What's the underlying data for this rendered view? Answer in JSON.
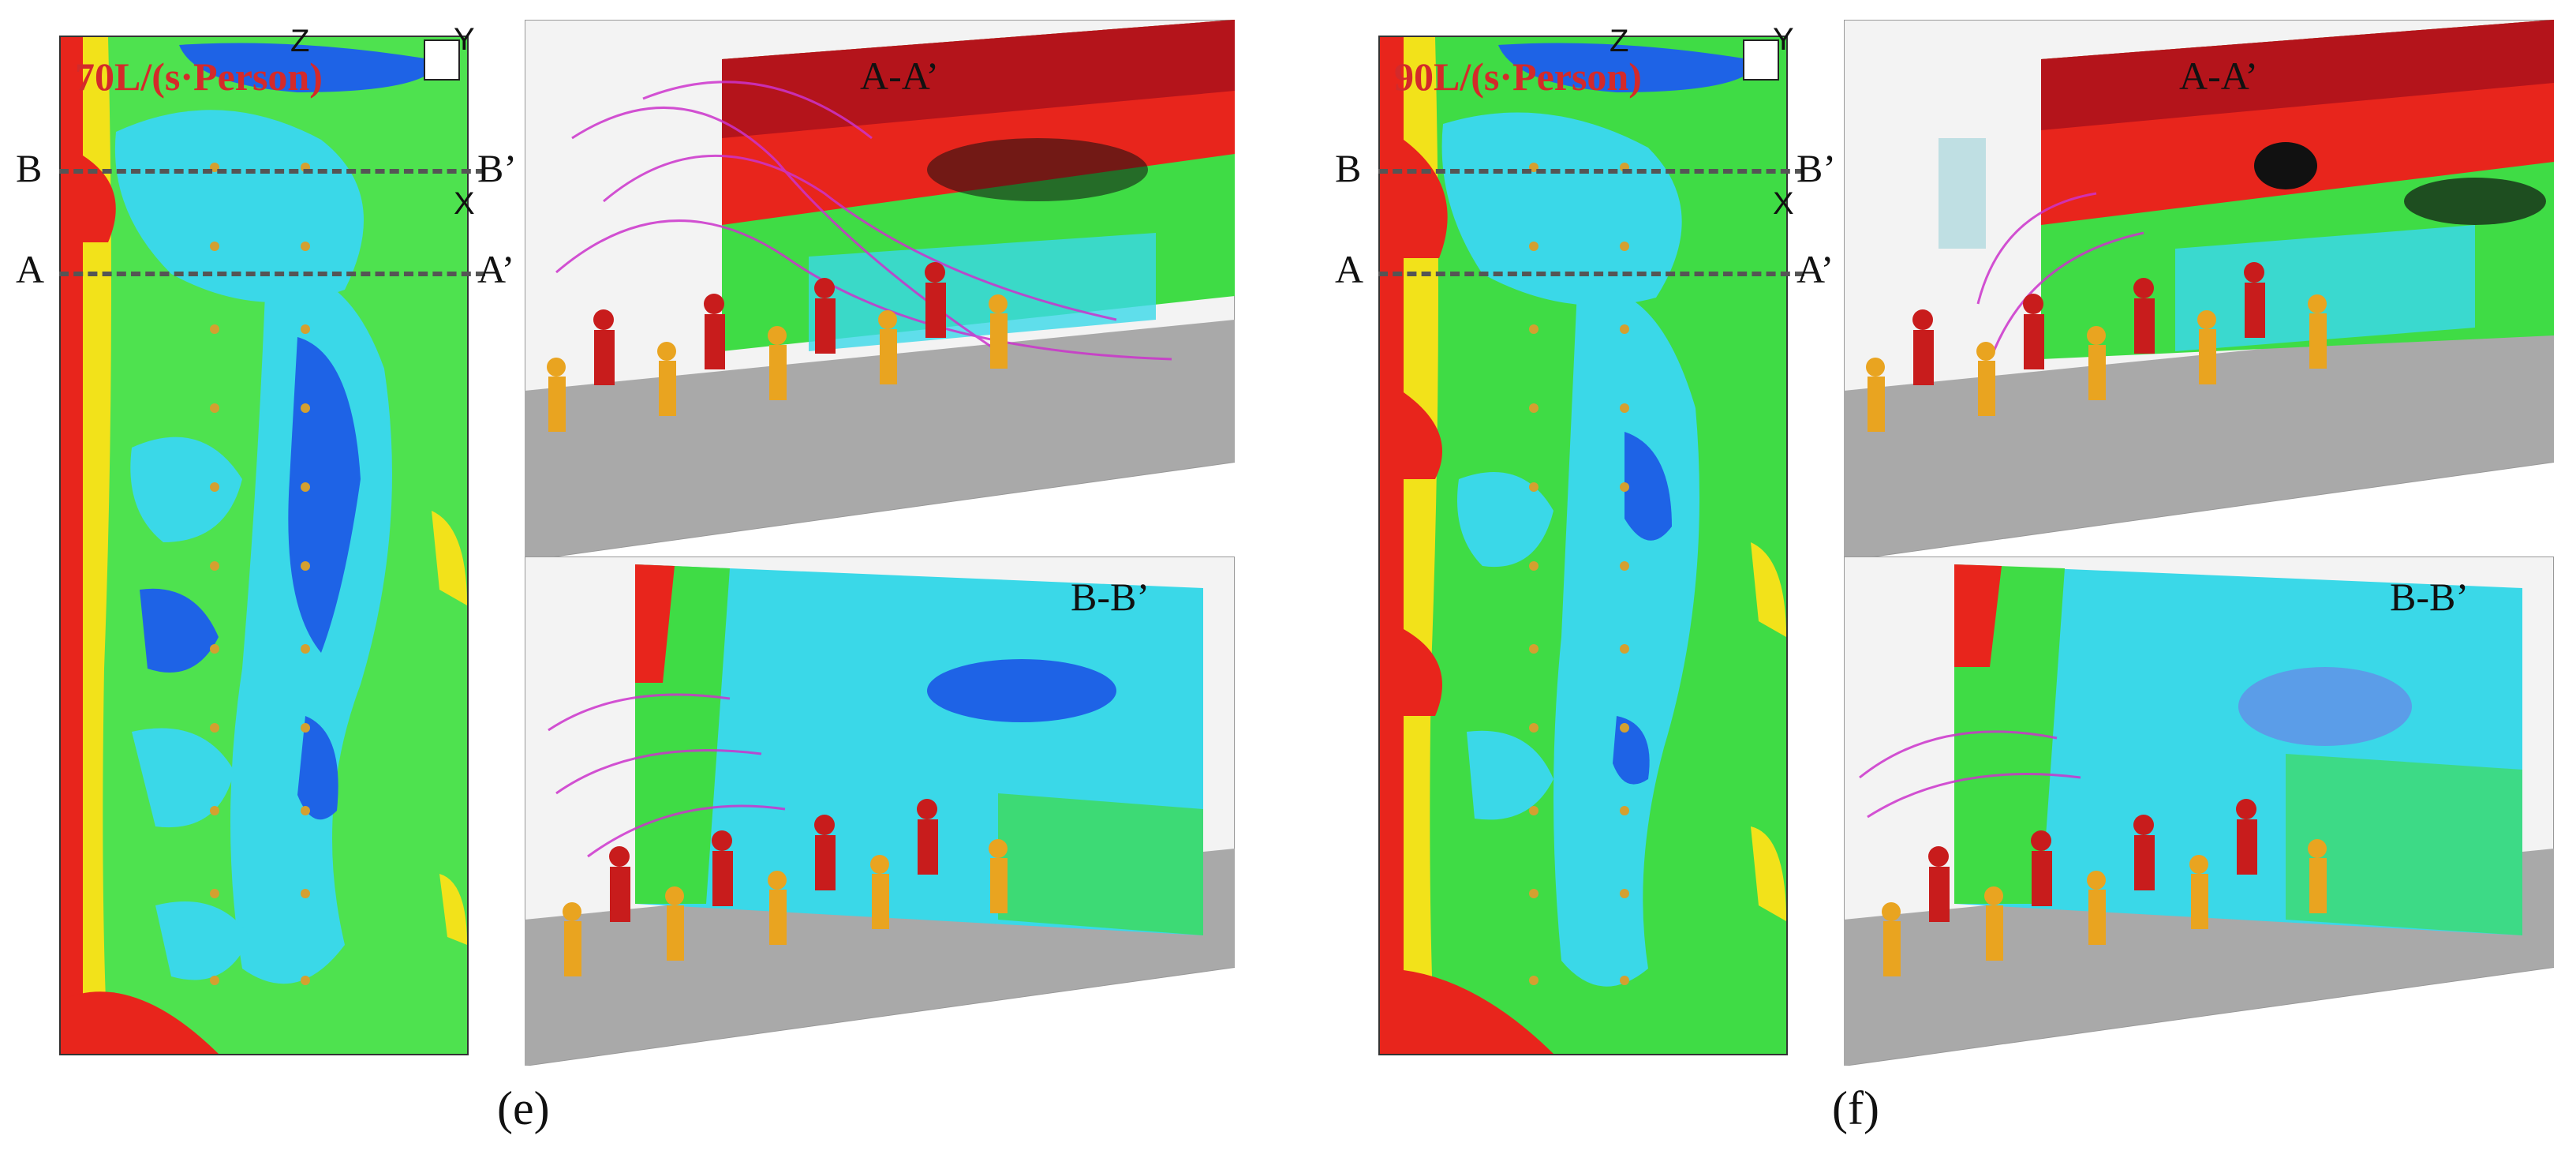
{
  "panels": [
    {
      "id": "e",
      "flow_rate_label": "70L/(s·Person)",
      "caption": "(e)",
      "axes": {
        "z": "Z",
        "y": "Y",
        "x": "X"
      },
      "section_marks": {
        "b_left": "B",
        "b_right": "B’",
        "a_left": "A",
        "a_right": "A’"
      },
      "views": {
        "top": "A-A’",
        "bottom": "B-B’"
      }
    },
    {
      "id": "f",
      "flow_rate_label": "90L/(s·Person)",
      "caption": "(f)",
      "axes": {
        "z": "Z",
        "y": "Y",
        "x": "X"
      },
      "section_marks": {
        "b_left": "B",
        "b_right": "B’",
        "a_left": "A",
        "a_right": "A’"
      },
      "views": {
        "top": "A-A’",
        "bottom": "B-B’"
      }
    }
  ],
  "colors": {
    "flow_label": "#d42a2a",
    "contour_red": "#e8251c",
    "contour_yellow": "#f2e21a",
    "contour_green": "#3fdc45",
    "contour_cyan": "#3ad8e8",
    "contour_blue": "#1e63e6",
    "streamline": "#cc33cc",
    "manikin_red": "#c81c1c",
    "manikin_orange": "#e9a420",
    "floor": "#a9a9a9"
  }
}
